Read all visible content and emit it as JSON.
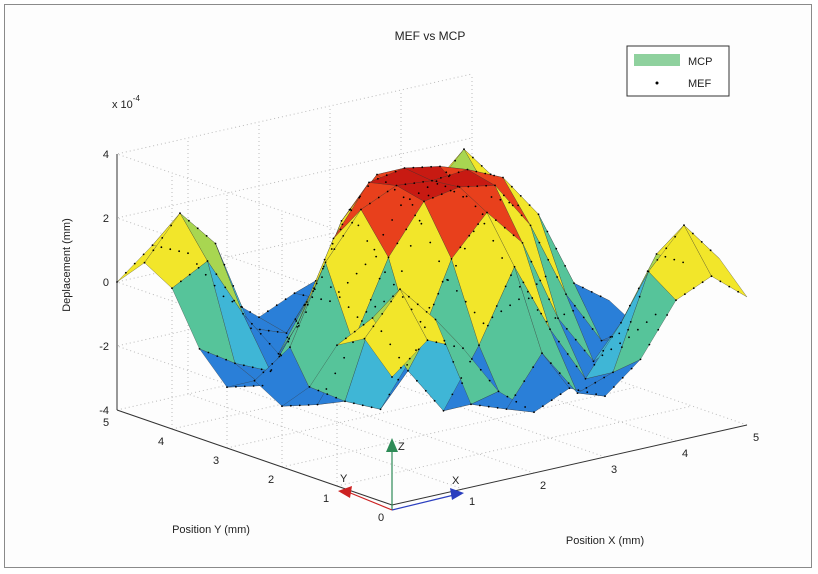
{
  "chart_data": {
    "type": "surface",
    "title": "MEF vs MCP",
    "xlabel": "Position X (mm)",
    "ylabel": "Position Y (mm)",
    "zlabel": "Deplacement (mm)",
    "z_multiplier_label": "x 10",
    "z_multiplier_exponent": "-4",
    "xlim": [
      0,
      5
    ],
    "ylim": [
      0,
      5
    ],
    "zlim": [
      -4,
      4
    ],
    "x_ticks": [
      "1",
      "2",
      "3",
      "4",
      "5"
    ],
    "y_ticks": [
      "0",
      "1",
      "2",
      "3",
      "4",
      "5"
    ],
    "z_ticks": [
      "-4",
      "-2",
      "0",
      "2",
      "4"
    ],
    "grid": true,
    "legend_position": "top-right",
    "legend": [
      {
        "label": "MCP",
        "marker": "surface",
        "color": "#8fd19e"
      },
      {
        "label": "MEF",
        "marker": "dot",
        "color": "#000000"
      }
    ],
    "series": [
      {
        "name": "MCP",
        "kind": "surface",
        "x_samples": [
          0,
          0.5,
          1.0,
          1.5,
          2.0,
          2.5,
          3.0,
          3.5,
          4.0,
          4.5,
          5.0
        ],
        "y_samples": [
          0,
          0.5,
          1.0,
          1.5,
          2.0,
          2.5,
          3.0,
          3.5,
          4.0,
          4.5,
          5.0
        ],
        "z": [
          [
            0.0,
            0.9,
            0.4,
            -1.2,
            -2.1,
            -1.6,
            -2.1,
            -1.2,
            0.4,
            0.9,
            0.0
          ],
          [
            0.9,
            2.2,
            1.0,
            -1.9,
            -2.3,
            -0.8,
            -2.3,
            -1.9,
            1.0,
            2.2,
            0.9
          ],
          [
            0.4,
            1.0,
            -0.9,
            -2.4,
            -0.6,
            1.6,
            -0.6,
            -2.4,
            -0.9,
            1.0,
            0.4
          ],
          [
            -1.2,
            -1.9,
            -2.4,
            -0.8,
            1.8,
            3.0,
            1.8,
            -0.8,
            -2.4,
            -1.9,
            -1.2
          ],
          [
            -2.1,
            -2.3,
            -0.6,
            1.8,
            3.3,
            3.5,
            3.3,
            1.8,
            -0.6,
            -2.3,
            -2.1
          ],
          [
            -1.6,
            -0.8,
            1.6,
            3.0,
            3.5,
            3.4,
            3.5,
            3.0,
            1.6,
            -0.8,
            -1.6
          ],
          [
            -2.1,
            -2.3,
            -0.6,
            1.8,
            3.3,
            3.5,
            3.3,
            1.8,
            -0.6,
            -2.3,
            -2.1
          ],
          [
            -1.2,
            -1.9,
            -2.4,
            -0.8,
            1.8,
            3.0,
            1.8,
            -0.8,
            -2.4,
            -1.9,
            -1.2
          ],
          [
            0.4,
            1.0,
            -0.9,
            -2.4,
            -0.6,
            1.6,
            -0.6,
            -2.4,
            -0.9,
            1.0,
            0.4
          ],
          [
            0.9,
            2.2,
            1.0,
            -1.9,
            -2.3,
            -0.8,
            -2.3,
            -1.9,
            1.0,
            2.2,
            0.9
          ],
          [
            0.0,
            0.9,
            0.4,
            -1.2,
            -2.1,
            -1.6,
            -2.1,
            -1.2,
            0.4,
            0.9,
            0.0
          ]
        ]
      },
      {
        "name": "MEF",
        "kind": "scatter3d",
        "note_from_same_grid": true
      }
    ],
    "axis_triad": {
      "x_label": "X",
      "y_label": "Y",
      "z_label": "Z"
    },
    "colormap": [
      "#1f3fbf",
      "#2a7fd8",
      "#3fb6d6",
      "#56c49a",
      "#a8d651",
      "#f2e62a",
      "#f6a21f",
      "#e8401c",
      "#c81a12"
    ]
  }
}
